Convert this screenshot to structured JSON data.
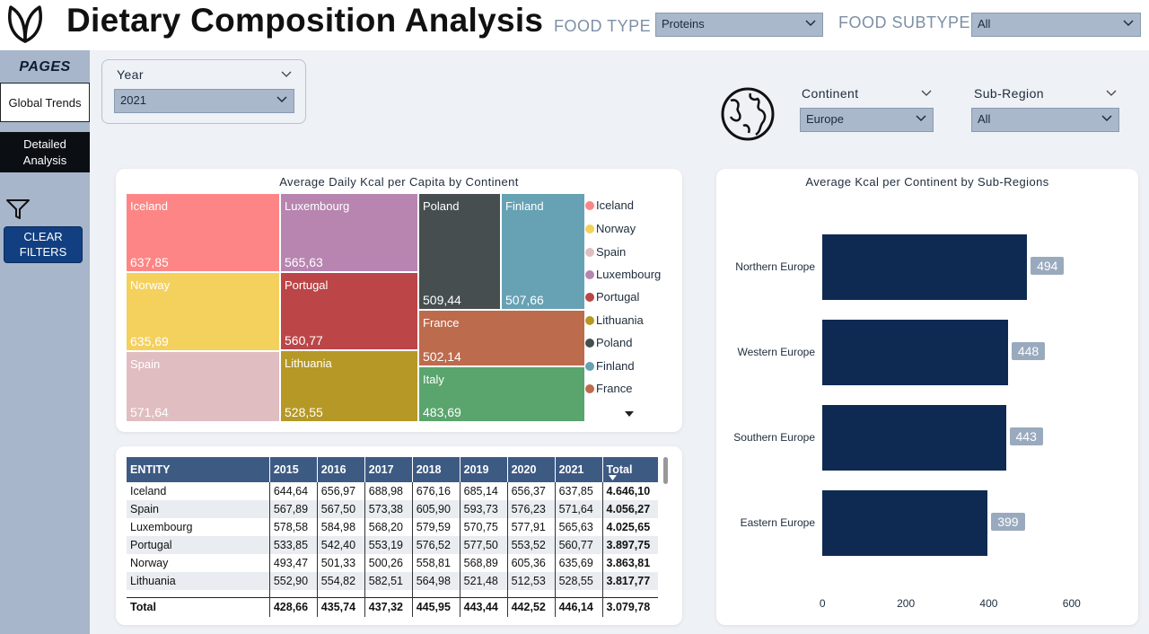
{
  "header": {
    "title": "Dietary Composition Analysis",
    "food_type_label": "FOOD TYPE",
    "food_type_value": "Proteins",
    "food_subtype_label": "FOOD SUBTYPE",
    "food_subtype_value": "All"
  },
  "nav": {
    "pages_title": "PAGES",
    "global_trends": "Global Trends",
    "detailed_analysis": "Detailed Analysis",
    "clear_filters": "CLEAR FILTERS"
  },
  "filters": {
    "year_label": "Year",
    "year_value": "2021",
    "continent_label": "Continent",
    "continent_value": "Europe",
    "subregion_label": "Sub-Region",
    "subregion_value": "All"
  },
  "treemap": {
    "title": "Average Daily Kcal per Capita by Continent",
    "items": [
      {
        "name": "Iceland",
        "value": "637,85",
        "color": "#fd8585"
      },
      {
        "name": "Norway",
        "value": "635,69",
        "color": "#f4d05d"
      },
      {
        "name": "Spain",
        "value": "571,64",
        "color": "#e0bdc1"
      },
      {
        "name": "Luxembourg",
        "value": "565,63",
        "color": "#b785b0"
      },
      {
        "name": "Portugal",
        "value": "560,77",
        "color": "#bb4547"
      },
      {
        "name": "Lithuania",
        "value": "528,55",
        "color": "#b59826"
      },
      {
        "name": "Poland",
        "value": "509,44",
        "color": "#464e50"
      },
      {
        "name": "Finland",
        "value": "507,66",
        "color": "#66a2b3"
      },
      {
        "name": "France",
        "value": "502,14",
        "color": "#bd6b4d"
      },
      {
        "name": "Italy",
        "value": "483,69",
        "color": "#5aa46d"
      }
    ],
    "legend": [
      "Iceland",
      "Norway",
      "Spain",
      "Luxembourg",
      "Portugal",
      "Lithuania",
      "Poland",
      "Finland",
      "France"
    ],
    "legend_colors": [
      "#fd8585",
      "#f4d05d",
      "#e0bdc1",
      "#b785b0",
      "#bb4547",
      "#b59826",
      "#464e50",
      "#66a2b3",
      "#bd6b4d"
    ]
  },
  "table": {
    "headers": [
      "ENTITY",
      "2015",
      "2016",
      "2017",
      "2018",
      "2019",
      "2020",
      "2021",
      "Total"
    ],
    "rows": [
      [
        "Iceland",
        "644,64",
        "656,97",
        "688,98",
        "676,16",
        "685,14",
        "656,37",
        "637,85",
        "4.646,10"
      ],
      [
        "Spain",
        "567,89",
        "567,50",
        "573,38",
        "605,90",
        "593,73",
        "576,23",
        "571,64",
        "4.056,27"
      ],
      [
        "Luxembourg",
        "578,58",
        "584,98",
        "568,20",
        "579,59",
        "570,75",
        "577,91",
        "565,63",
        "4.025,65"
      ],
      [
        "Portugal",
        "533,85",
        "542,40",
        "553,19",
        "576,52",
        "577,50",
        "553,52",
        "560,77",
        "3.897,75"
      ],
      [
        "Norway",
        "493,47",
        "501,33",
        "500,26",
        "558,81",
        "568,89",
        "605,36",
        "635,69",
        "3.863,81"
      ],
      [
        "Lithuania",
        "552,90",
        "554,82",
        "582,51",
        "564,98",
        "521,48",
        "512,53",
        "528,55",
        "3.817,77"
      ]
    ],
    "total_row": [
      "Total",
      "428,66",
      "435,74",
      "437,32",
      "445,95",
      "443,44",
      "442,52",
      "446,14",
      "3.079,78"
    ]
  },
  "bar_chart": {
    "title": "Average Kcal per Continent by Sub-Regions",
    "chart_data": {
      "type": "bar",
      "orientation": "horizontal",
      "categories": [
        "Northern Europe",
        "Western Europe",
        "Southern Europe",
        "Eastern Europe"
      ],
      "values": [
        494,
        448,
        443,
        399
      ],
      "xlim": [
        0,
        600
      ],
      "ticks": [
        "0",
        "200",
        "400",
        "600"
      ],
      "color": "#0f2a52"
    }
  }
}
